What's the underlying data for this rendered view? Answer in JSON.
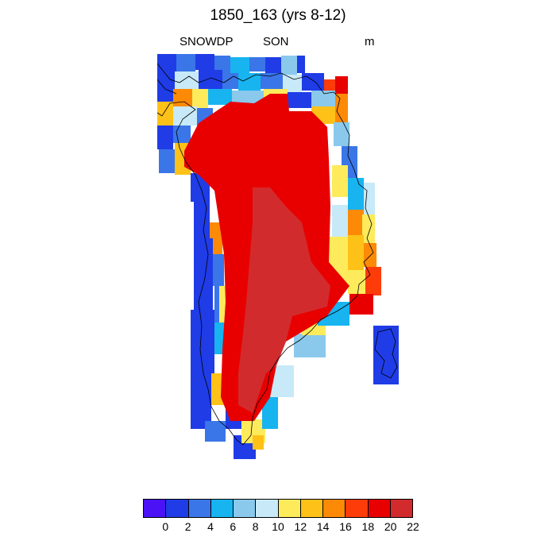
{
  "title": "1850_163 (yrs 8-12)",
  "variable": "SNOWDP",
  "season": "SON",
  "units": "m",
  "colorbar": {
    "colors": [
      "#4a12f5",
      "#1f3ce6",
      "#3a76e8",
      "#17b4f0",
      "#8ac9ec",
      "#c8e9f7",
      "#fdeb5b",
      "#fdc118",
      "#fd8a06",
      "#fd3c0a",
      "#e80000",
      "#d22b2d"
    ],
    "labels": [
      "0",
      "2",
      "4",
      "6",
      "8",
      "10",
      "12",
      "14",
      "16",
      "18",
      "20",
      "22"
    ]
  },
  "legend": {
    "tick_values": [
      0,
      2,
      4,
      6,
      8,
      10,
      12,
      14,
      16,
      18,
      20,
      22
    ]
  }
}
